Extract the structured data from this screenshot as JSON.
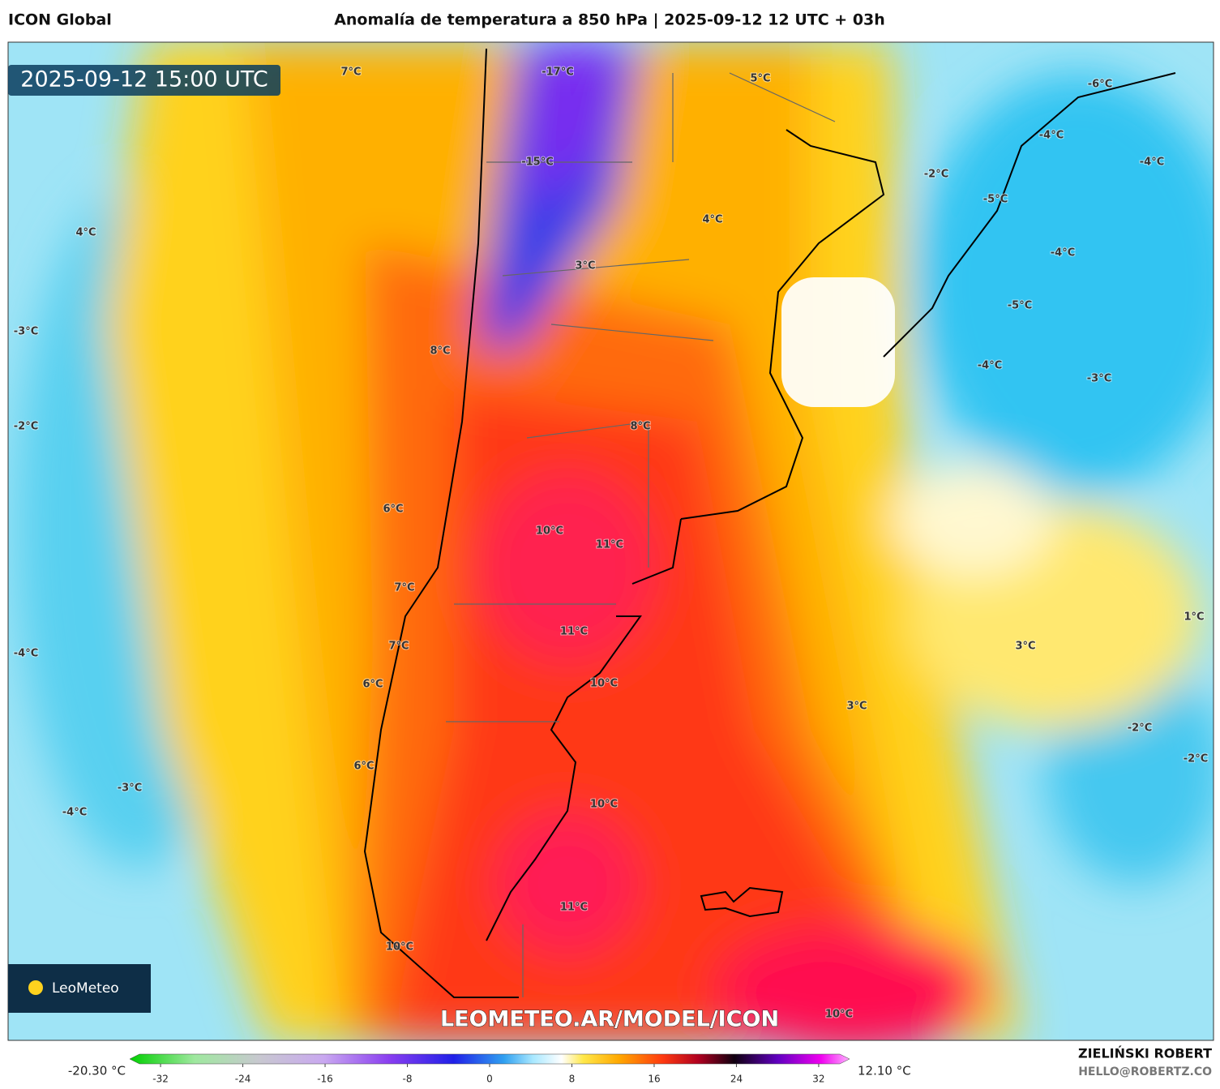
{
  "header": {
    "model": "ICON Global",
    "title": "Anomalía de temperatura a 850 hPa | 2025-09-12 12 UTC + 03h"
  },
  "timestamp": "2025-09-12 15:00 UTC",
  "map_labels": [
    "7°C",
    "-17°C",
    "5°C",
    "-6°C",
    "-4°C",
    "-4°C",
    "-15°C",
    "-2°C",
    "-5°C",
    "4°C",
    "4°C",
    "-4°C",
    "3°C",
    "-5°C",
    "-3°C",
    "8°C",
    "-4°C",
    "-3°C",
    "-2°C",
    "8°C",
    "6°C",
    "10°C",
    "11°C",
    "7°C",
    "1°C",
    "11°C",
    "7°C",
    "3°C",
    "-4°C",
    "10°C",
    "6°C",
    "3°C",
    "-2°C",
    "6°C",
    "-2°C",
    "-3°C",
    "10°C",
    "-4°C",
    "11°C",
    "10°C",
    "10°C"
  ],
  "logo": "LeoMeteo",
  "watermark": "LEOMETEO.AR/MODEL/ICON",
  "colorbar": {
    "min_label": "-20.30 °C",
    "max_label": "12.10 °C",
    "lim": [
      -35,
      35
    ],
    "ticks": [
      -32,
      -24,
      -16,
      -8,
      0,
      8,
      16,
      24,
      32
    ]
  },
  "footer": {
    "author": "ZIELIŃSKI ROBERT",
    "email": "HELLO@ROBERTZ.CO"
  }
}
